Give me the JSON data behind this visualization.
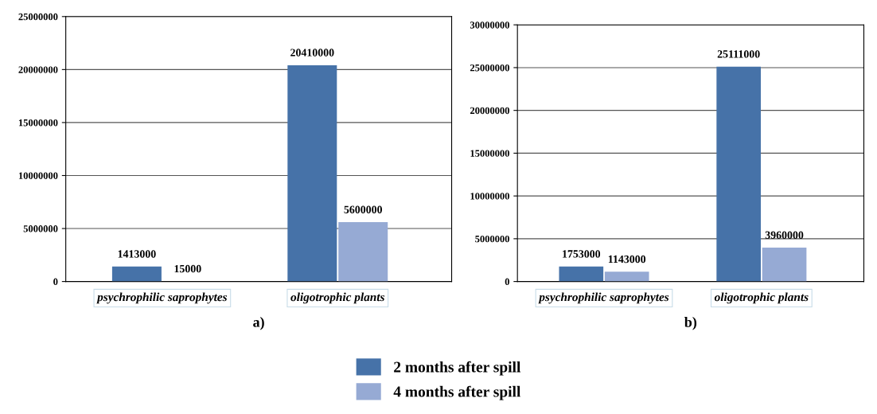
{
  "chart_data": [
    {
      "type": "bar",
      "xlabel": "a)",
      "categories": [
        "psychrophilic saprophytes",
        "oligotrophic plants"
      ],
      "series": [
        {
          "name": "2 months after spill",
          "color": "#4672a8",
          "values": [
            1413000,
            20410000
          ]
        },
        {
          "name": "4 months after spill",
          "color": "#96aad4",
          "values": [
            15000,
            5600000
          ]
        }
      ],
      "ylim": [
        0,
        25000000
      ],
      "yticks": [
        0,
        5000000,
        10000000,
        15000000,
        20000000,
        25000000
      ],
      "grid": "y",
      "data_labels": true,
      "legend": "bottom"
    },
    {
      "type": "bar",
      "xlabel": "b)",
      "categories": [
        "psychrophilic saprophytes",
        "oligotrophic plants"
      ],
      "series": [
        {
          "name": "2 months after spill",
          "color": "#4672a8",
          "values": [
            1753000,
            25111000
          ]
        },
        {
          "name": "4 months after spill",
          "color": "#96aad4",
          "values": [
            1143000,
            3960000
          ]
        }
      ],
      "ylim": [
        0,
        30000000
      ],
      "yticks": [
        0,
        5000000,
        10000000,
        15000000,
        20000000,
        25000000,
        30000000
      ],
      "grid": "y",
      "data_labels": true
    }
  ]
}
